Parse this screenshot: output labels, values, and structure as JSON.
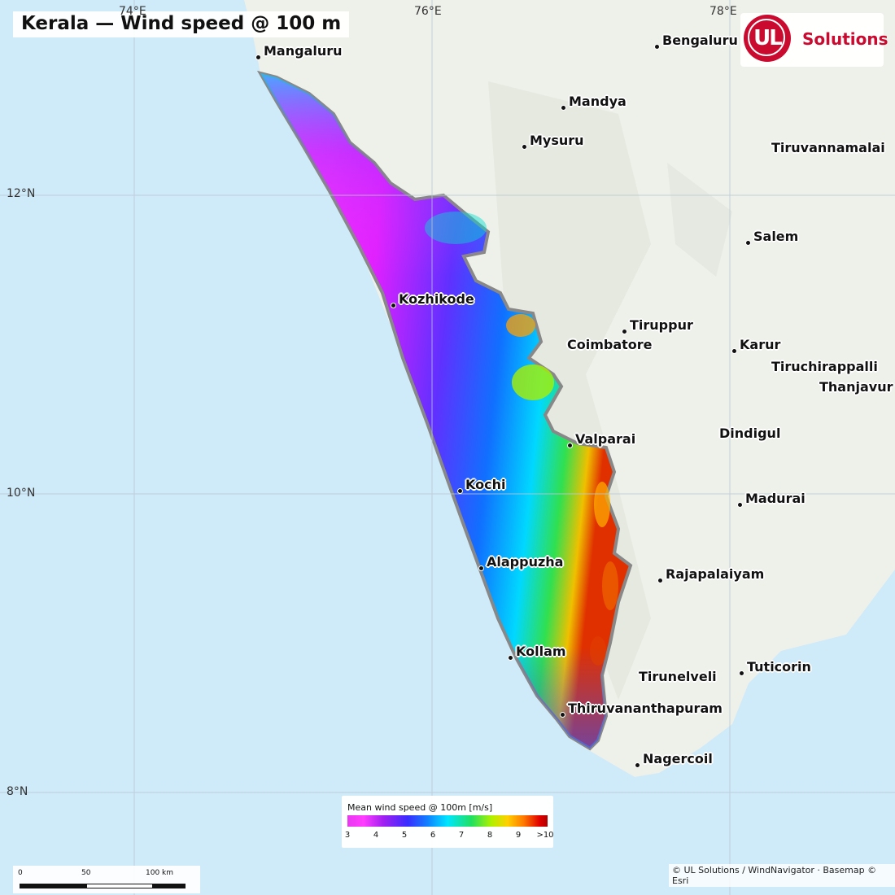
{
  "title": "Kerala — Wind speed @ 100 m",
  "graticule": {
    "lon_labels": [
      "74°E",
      "76°E",
      "78°E"
    ],
    "lat_labels": [
      "12°N",
      "10°N",
      "8°N"
    ]
  },
  "cities": [
    {
      "id": "mangaluru",
      "name": "Mangaluru"
    },
    {
      "id": "bengaluru",
      "name": "Bengaluru"
    },
    {
      "id": "mandya",
      "name": "Mandya"
    },
    {
      "id": "mysuru",
      "name": "Mysuru"
    },
    {
      "id": "tiruvannamalai",
      "name": "Tiruvannamalai"
    },
    {
      "id": "salem",
      "name": "Salem"
    },
    {
      "id": "kozhikode",
      "name": "Kozhikode"
    },
    {
      "id": "tiruppur",
      "name": "Tiruppur"
    },
    {
      "id": "coimbatore",
      "name": "Coimbatore"
    },
    {
      "id": "karur",
      "name": "Karur"
    },
    {
      "id": "tiruchirappalli",
      "name": "Tiruchirappalli"
    },
    {
      "id": "thanjavur",
      "name": "Thanjavur"
    },
    {
      "id": "valparai",
      "name": "Valparai"
    },
    {
      "id": "dindigul",
      "name": "Dindigul"
    },
    {
      "id": "kochi",
      "name": "Kochi"
    },
    {
      "id": "madurai",
      "name": "Madurai"
    },
    {
      "id": "alappuzha",
      "name": "Alappuzha"
    },
    {
      "id": "rajapalaiyam",
      "name": "Rajapalaiyam"
    },
    {
      "id": "kollam",
      "name": "Kollam"
    },
    {
      "id": "tirunelveli",
      "name": "Tirunelveli"
    },
    {
      "id": "tuticorin",
      "name": "Tuticorin"
    },
    {
      "id": "thiruvananthapuram",
      "name": "Thiruvananthapuram"
    },
    {
      "id": "nagercoil",
      "name": "Nagercoil"
    }
  ],
  "logo": {
    "mark": "UL",
    "text": "Solutions",
    "color": "#ca0a2e"
  },
  "legend": {
    "title": "Mean wind speed @ 100m  [m/s]",
    "ticks": [
      "3",
      "4",
      "5",
      "6",
      "7",
      "8",
      "9",
      ">10"
    ]
  },
  "scalebar": {
    "labels": [
      "0",
      "50",
      "100 km"
    ]
  },
  "attribution": "© UL Solutions / WindNavigator · Basemap © Esri",
  "colors": {
    "ocean": "#cfeaf8",
    "land": "#eef0ea",
    "wind_low": "#ff3dff",
    "wind_mid": "#00e5ff",
    "wind_high": "#e00000"
  }
}
